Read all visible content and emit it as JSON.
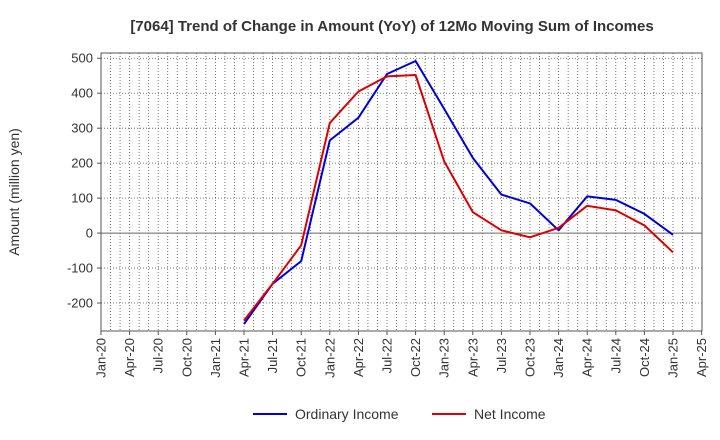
{
  "chart_data": {
    "type": "line",
    "title": "[7064]  Trend of Change in Amount (YoY) of 12Mo Moving Sum of Incomes",
    "xlabel": "",
    "ylabel": "Amount (million yen)",
    "ylim": [
      -280,
      515
    ],
    "yticks": [
      500,
      400,
      300,
      200,
      100,
      0,
      -100,
      -200
    ],
    "ytick_labels": [
      "500",
      "400",
      "300",
      "200",
      "100",
      "0",
      "-100",
      "-200"
    ],
    "categories": [
      "Jan-20",
      "Apr-20",
      "Jul-20",
      "Oct-20",
      "Jan-21",
      "Apr-21",
      "Jul-21",
      "Oct-21",
      "Jan-22",
      "Apr-22",
      "Jul-22",
      "Oct-22",
      "Jan-23",
      "Apr-23",
      "Jul-23",
      "Oct-23",
      "Jan-24",
      "Apr-24",
      "Jul-24",
      "Oct-24",
      "Jan-25",
      "Apr-25"
    ],
    "grid": true,
    "legend_position": "bottom",
    "series": [
      {
        "name": "Ordinary Income",
        "color": "#0000dd",
        "points": [
          {
            "x": 5,
            "y": -260
          },
          {
            "x": 6,
            "y": -145
          },
          {
            "x": 7,
            "y": -80
          },
          {
            "x": 8,
            "y": 265
          },
          {
            "x": 9,
            "y": 330
          },
          {
            "x": 10,
            "y": 455
          },
          {
            "x": 11,
            "y": 492
          },
          {
            "x": 12,
            "y": 355
          },
          {
            "x": 13,
            "y": 215
          },
          {
            "x": 14,
            "y": 110
          },
          {
            "x": 15,
            "y": 85
          },
          {
            "x": 16,
            "y": 8
          },
          {
            "x": 17,
            "y": 105
          },
          {
            "x": 18,
            "y": 95
          },
          {
            "x": 19,
            "y": 55
          },
          {
            "x": 20,
            "y": -5
          }
        ]
      },
      {
        "name": "Net Income",
        "color": "#dd0000",
        "points": [
          {
            "x": 5,
            "y": -250
          },
          {
            "x": 6,
            "y": -145
          },
          {
            "x": 7,
            "y": -35
          },
          {
            "x": 8,
            "y": 315
          },
          {
            "x": 9,
            "y": 405
          },
          {
            "x": 10,
            "y": 448
          },
          {
            "x": 11,
            "y": 452
          },
          {
            "x": 12,
            "y": 205
          },
          {
            "x": 13,
            "y": 60
          },
          {
            "x": 14,
            "y": 8
          },
          {
            "x": 15,
            "y": -12
          },
          {
            "x": 16,
            "y": 15
          },
          {
            "x": 17,
            "y": 78
          },
          {
            "x": 18,
            "y": 65
          },
          {
            "x": 19,
            "y": 22
          },
          {
            "x": 20,
            "y": -55
          }
        ]
      }
    ]
  }
}
